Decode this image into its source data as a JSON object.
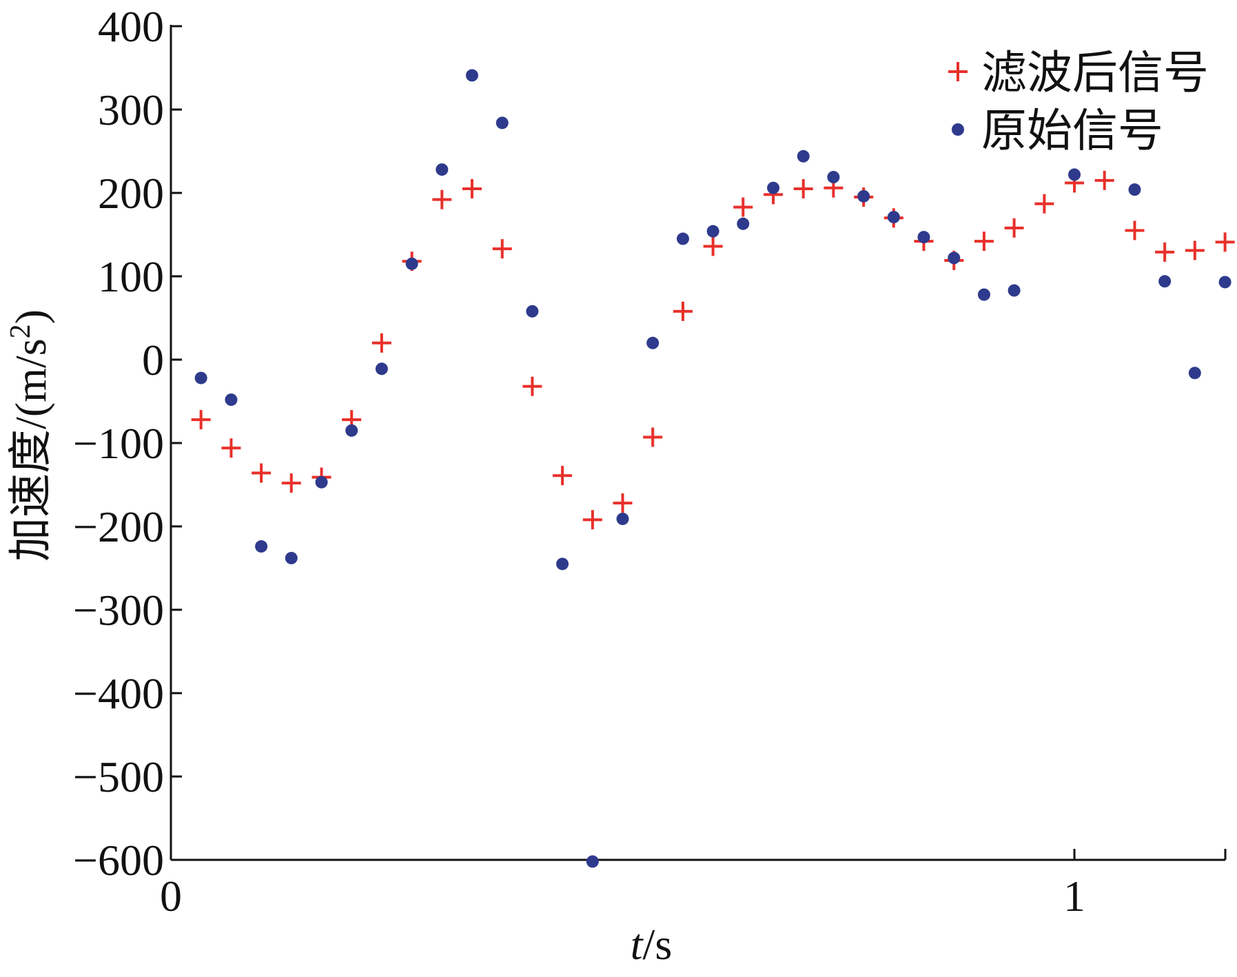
{
  "chart_data": {
    "type": "scatter",
    "xlabel_italic": "t",
    "xlabel_unit": "/s",
    "ylabel_main": "加速度/(m/s",
    "ylabel_sup": "2",
    "ylabel_close": ")",
    "xlim": [
      0,
      1.167
    ],
    "ylim": [
      -600,
      400
    ],
    "xticks": [
      0,
      1
    ],
    "xtick_labels": [
      "0",
      "1"
    ],
    "yticks": [
      400,
      300,
      200,
      100,
      0,
      -100,
      -200,
      -300,
      -400,
      -500,
      -600
    ],
    "ytick_labels": [
      "400",
      "300",
      "200",
      "100",
      "0",
      "−100",
      "−200",
      "−300",
      "−400",
      "−500",
      "−600"
    ],
    "grid": false,
    "legend_position": "top-right",
    "series": [
      {
        "name": "滤波后信号",
        "marker": "plus",
        "color": "#e8302a",
        "points": [
          [
            0.0333,
            -72
          ],
          [
            0.0667,
            -106
          ],
          [
            0.1,
            -136
          ],
          [
            0.1333,
            -148
          ],
          [
            0.1667,
            -141
          ],
          [
            0.2,
            -72
          ],
          [
            0.2333,
            20
          ],
          [
            0.2667,
            118
          ],
          [
            0.3,
            192
          ],
          [
            0.3333,
            205
          ],
          [
            0.3667,
            133
          ],
          [
            0.4,
            -32
          ],
          [
            0.4333,
            -139
          ],
          [
            0.4667,
            -192
          ],
          [
            0.5,
            -172
          ],
          [
            0.5333,
            -93
          ],
          [
            0.5667,
            58
          ],
          [
            0.6,
            136
          ],
          [
            0.6333,
            183
          ],
          [
            0.6667,
            198
          ],
          [
            0.7,
            205
          ],
          [
            0.7333,
            206
          ],
          [
            0.7667,
            195
          ],
          [
            0.8,
            170
          ],
          [
            0.8333,
            142
          ],
          [
            0.8667,
            119
          ],
          [
            0.9,
            142
          ],
          [
            0.9333,
            158
          ],
          [
            0.9667,
            187
          ],
          [
            1.0,
            212
          ],
          [
            1.0333,
            215
          ],
          [
            1.0667,
            155
          ],
          [
            1.1,
            129
          ],
          [
            1.1333,
            131
          ],
          [
            1.1667,
            141
          ]
        ]
      },
      {
        "name": "原始信号",
        "marker": "dot",
        "color": "#2e3a8c",
        "points": [
          [
            0.0333,
            -22
          ],
          [
            0.0667,
            -48
          ],
          [
            0.1,
            -224
          ],
          [
            0.1333,
            -238
          ],
          [
            0.1667,
            -147
          ],
          [
            0.2,
            -85
          ],
          [
            0.2333,
            -11
          ],
          [
            0.2667,
            115
          ],
          [
            0.3,
            228
          ],
          [
            0.3333,
            341
          ],
          [
            0.3667,
            284
          ],
          [
            0.4,
            58
          ],
          [
            0.4333,
            -245
          ],
          [
            0.4667,
            -602
          ],
          [
            0.5,
            -191
          ],
          [
            0.5333,
            20
          ],
          [
            0.5667,
            145
          ],
          [
            0.6,
            154
          ],
          [
            0.6333,
            163
          ],
          [
            0.6667,
            206
          ],
          [
            0.7,
            244
          ],
          [
            0.7333,
            219
          ],
          [
            0.7667,
            196
          ],
          [
            0.8,
            171
          ],
          [
            0.8333,
            147
          ],
          [
            0.8667,
            122
          ],
          [
            0.9,
            78
          ],
          [
            0.9333,
            83
          ],
          [
            0.9667,
            null
          ],
          [
            1.0,
            222
          ],
          [
            1.0333,
            null
          ],
          [
            1.0667,
            204
          ],
          [
            1.1,
            94
          ],
          [
            1.1333,
            -16
          ],
          [
            1.1667,
            93
          ]
        ]
      }
    ]
  }
}
